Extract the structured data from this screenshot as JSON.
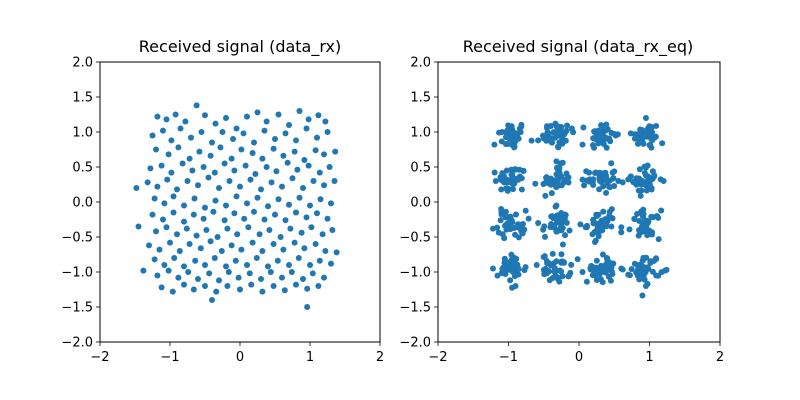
{
  "figure": {
    "background": "#ffffff",
    "point_color": "#1f77b4"
  },
  "chart_data": [
    {
      "type": "scatter",
      "title": "Received signal (data_rx)",
      "xlim": [
        -2,
        2
      ],
      "ylim": [
        -2,
        2
      ],
      "xticks": [
        -2,
        -1,
        0,
        1,
        2
      ],
      "yticks": [
        -2.0,
        -1.5,
        -1.0,
        -0.5,
        0.0,
        0.5,
        1.0,
        1.5,
        2.0
      ],
      "xtick_labels": [
        "−2",
        "−1",
        "0",
        "1",
        "2"
      ],
      "ytick_labels": [
        "−2.0",
        "−1.5",
        "−1.0",
        "−0.5",
        "0.0",
        "0.5",
        "1.0",
        "1.5",
        "2.0"
      ],
      "grid": false,
      "series": [
        {
          "color": "#1f77b4",
          "points": [
            [
              -1.18,
              1.22
            ],
            [
              -1.05,
              1.18
            ],
            [
              -0.92,
              1.25
            ],
            [
              -0.78,
              1.15
            ],
            [
              -0.62,
              1.38
            ],
            [
              -0.5,
              1.24
            ],
            [
              -0.35,
              1.12
            ],
            [
              -0.2,
              1.2
            ],
            [
              -0.05,
              1.05
            ],
            [
              0.1,
              1.22
            ],
            [
              0.25,
              1.28
            ],
            [
              0.38,
              1.15
            ],
            [
              0.55,
              1.25
            ],
            [
              0.7,
              1.1
            ],
            [
              0.85,
              1.3
            ],
            [
              0.98,
              1.18
            ],
            [
              1.12,
              1.24
            ],
            [
              1.22,
              1.15
            ],
            [
              -1.25,
              0.95
            ],
            [
              -1.1,
              1.02
            ],
            [
              -0.98,
              0.88
            ],
            [
              -0.85,
              1.05
            ],
            [
              -0.7,
              0.92
            ],
            [
              -0.55,
              1.0
            ],
            [
              -0.4,
              0.85
            ],
            [
              -0.25,
              1.0
            ],
            [
              -0.1,
              0.9
            ],
            [
              0.05,
              0.98
            ],
            [
              0.2,
              0.85
            ],
            [
              0.35,
              1.02
            ],
            [
              0.5,
              0.9
            ],
            [
              0.65,
              0.98
            ],
            [
              0.8,
              0.88
            ],
            [
              0.95,
              1.05
            ],
            [
              1.1,
              0.92
            ],
            [
              1.25,
              1.0
            ],
            [
              -1.2,
              0.75
            ],
            [
              -1.02,
              0.68
            ],
            [
              -0.88,
              0.78
            ],
            [
              -0.72,
              0.62
            ],
            [
              -0.58,
              0.72
            ],
            [
              -0.42,
              0.66
            ],
            [
              -0.28,
              0.78
            ],
            [
              -0.12,
              0.62
            ],
            [
              0.02,
              0.75
            ],
            [
              0.18,
              0.7
            ],
            [
              0.32,
              0.62
            ],
            [
              0.48,
              0.76
            ],
            [
              0.62,
              0.66
            ],
            [
              0.78,
              0.72
            ],
            [
              0.92,
              0.6
            ],
            [
              1.08,
              0.74
            ],
            [
              1.2,
              0.68
            ],
            [
              -1.28,
              0.48
            ],
            [
              -1.12,
              0.52
            ],
            [
              -0.98,
              0.42
            ],
            [
              -0.82,
              0.55
            ],
            [
              -0.68,
              0.45
            ],
            [
              -0.52,
              0.5
            ],
            [
              -0.36,
              0.42
            ],
            [
              -0.22,
              0.55
            ],
            [
              -0.08,
              0.45
            ],
            [
              0.08,
              0.52
            ],
            [
              0.22,
              0.4
            ],
            [
              0.38,
              0.5
            ],
            [
              0.52,
              0.44
            ],
            [
              0.68,
              0.56
            ],
            [
              0.82,
              0.46
            ],
            [
              0.98,
              0.52
            ],
            [
              1.14,
              0.42
            ],
            [
              1.28,
              0.5
            ],
            [
              -1.32,
              0.28
            ],
            [
              -1.18,
              0.22
            ],
            [
              -1.04,
              0.32
            ],
            [
              -0.9,
              0.18
            ],
            [
              -0.75,
              0.3
            ],
            [
              -0.6,
              0.24
            ],
            [
              -0.45,
              0.35
            ],
            [
              -0.3,
              0.2
            ],
            [
              -0.15,
              0.3
            ],
            [
              0.0,
              0.22
            ],
            [
              0.15,
              0.32
            ],
            [
              0.3,
              0.18
            ],
            [
              0.45,
              0.28
            ],
            [
              0.6,
              0.22
            ],
            [
              0.75,
              0.34
            ],
            [
              0.9,
              0.2
            ],
            [
              1.05,
              0.3
            ],
            [
              1.2,
              0.24
            ],
            [
              1.35,
              0.3
            ],
            [
              -1.48,
              0.2
            ],
            [
              -1.22,
              0.05
            ],
            [
              -1.08,
              -0.02
            ],
            [
              -0.95,
              0.08
            ],
            [
              -0.8,
              -0.05
            ],
            [
              -0.65,
              0.05
            ],
            [
              -0.5,
              -0.08
            ],
            [
              -0.35,
              0.02
            ],
            [
              -0.2,
              -0.05
            ],
            [
              -0.05,
              0.08
            ],
            [
              0.1,
              -0.02
            ],
            [
              0.25,
              0.06
            ],
            [
              0.4,
              -0.06
            ],
            [
              0.55,
              0.04
            ],
            [
              0.7,
              -0.04
            ],
            [
              0.85,
              0.06
            ],
            [
              1.0,
              -0.05
            ],
            [
              1.15,
              0.04
            ],
            [
              1.3,
              -0.02
            ],
            [
              -1.25,
              -0.18
            ],
            [
              -1.1,
              -0.25
            ],
            [
              -0.95,
              -0.15
            ],
            [
              -0.8,
              -0.28
            ],
            [
              -0.66,
              -0.18
            ],
            [
              -0.52,
              -0.24
            ],
            [
              -0.38,
              -0.14
            ],
            [
              -0.22,
              -0.26
            ],
            [
              -0.08,
              -0.16
            ],
            [
              0.06,
              -0.24
            ],
            [
              0.2,
              -0.14
            ],
            [
              0.35,
              -0.25
            ],
            [
              0.5,
              -0.18
            ],
            [
              0.65,
              -0.26
            ],
            [
              0.8,
              -0.15
            ],
            [
              0.95,
              -0.22
            ],
            [
              1.1,
              -0.16
            ],
            [
              1.25,
              -0.24
            ],
            [
              -1.2,
              -0.42
            ],
            [
              -1.05,
              -0.36
            ],
            [
              -0.9,
              -0.46
            ],
            [
              -0.76,
              -0.38
            ],
            [
              -0.62,
              -0.48
            ],
            [
              -0.48,
              -0.4
            ],
            [
              -0.32,
              -0.5
            ],
            [
              -0.18,
              -0.38
            ],
            [
              -0.04,
              -0.46
            ],
            [
              0.12,
              -0.36
            ],
            [
              0.28,
              -0.46
            ],
            [
              0.42,
              -0.4
            ],
            [
              0.58,
              -0.5
            ],
            [
              0.72,
              -0.38
            ],
            [
              0.88,
              -0.44
            ],
            [
              1.02,
              -0.36
            ],
            [
              1.18,
              -0.46
            ],
            [
              1.32,
              -0.4
            ],
            [
              -1.3,
              -0.62
            ],
            [
              -1.15,
              -0.68
            ],
            [
              -1.0,
              -0.58
            ],
            [
              -0.86,
              -0.7
            ],
            [
              -0.72,
              -0.6
            ],
            [
              -0.56,
              -0.66
            ],
            [
              -0.42,
              -0.56
            ],
            [
              -0.26,
              -0.7
            ],
            [
              -0.12,
              -0.62
            ],
            [
              0.02,
              -0.68
            ],
            [
              0.18,
              -0.58
            ],
            [
              0.32,
              -0.7
            ],
            [
              0.48,
              -0.6
            ],
            [
              0.62,
              -0.68
            ],
            [
              0.78,
              -0.58
            ],
            [
              0.92,
              -0.66
            ],
            [
              1.08,
              -0.6
            ],
            [
              1.22,
              -0.7
            ],
            [
              -1.22,
              -0.82
            ],
            [
              -1.08,
              -0.9
            ],
            [
              -0.94,
              -0.8
            ],
            [
              -0.8,
              -0.92
            ],
            [
              -0.64,
              -0.84
            ],
            [
              -0.5,
              -0.9
            ],
            [
              -0.36,
              -0.8
            ],
            [
              -0.2,
              -0.92
            ],
            [
              -0.06,
              -0.84
            ],
            [
              0.1,
              -0.9
            ],
            [
              0.24,
              -0.8
            ],
            [
              0.4,
              -0.92
            ],
            [
              0.54,
              -0.84
            ],
            [
              0.7,
              -0.9
            ],
            [
              0.84,
              -0.8
            ],
            [
              1.0,
              -0.9
            ],
            [
              1.14,
              -0.84
            ],
            [
              1.3,
              -0.88
            ],
            [
              -1.38,
              -0.98
            ],
            [
              -1.18,
              -1.05
            ],
            [
              -1.02,
              -0.98
            ],
            [
              -0.88,
              -1.08
            ],
            [
              -0.74,
              -1.0
            ],
            [
              -0.6,
              -1.1
            ],
            [
              -0.44,
              -1.02
            ],
            [
              -0.3,
              -1.12
            ],
            [
              -0.16,
              -1.0
            ],
            [
              -0.02,
              -1.08
            ],
            [
              0.14,
              -1.02
            ],
            [
              0.3,
              -1.1
            ],
            [
              0.44,
              -1.0
            ],
            [
              0.6,
              -1.08
            ],
            [
              0.74,
              -1.0
            ],
            [
              0.9,
              -1.1
            ],
            [
              1.04,
              -1.02
            ],
            [
              1.2,
              -1.08
            ],
            [
              -1.12,
              -1.22
            ],
            [
              -0.96,
              -1.28
            ],
            [
              -0.8,
              -1.18
            ],
            [
              -0.66,
              -1.25
            ],
            [
              -0.5,
              -1.2
            ],
            [
              -0.34,
              -1.28
            ],
            [
              -0.18,
              -1.2
            ],
            [
              0.0,
              -1.25
            ],
            [
              0.16,
              -1.18
            ],
            [
              0.32,
              -1.28
            ],
            [
              0.48,
              -1.2
            ],
            [
              0.64,
              -1.26
            ],
            [
              0.8,
              -1.18
            ],
            [
              0.96,
              -1.24
            ],
            [
              1.12,
              -1.2
            ],
            [
              -0.4,
              -1.4
            ],
            [
              0.96,
              -1.5
            ],
            [
              1.38,
              -0.72
            ],
            [
              -1.45,
              -0.35
            ],
            [
              1.36,
              0.72
            ]
          ]
        }
      ]
    },
    {
      "type": "scatter",
      "title": "Received signal (data_rx_eq)",
      "xlim": [
        -2,
        2
      ],
      "ylim": [
        -2,
        2
      ],
      "xticks": [
        -2,
        -1,
        0,
        1,
        2
      ],
      "yticks": [
        -2.0,
        -1.5,
        -1.0,
        -0.5,
        0.0,
        0.5,
        1.0,
        1.5,
        2.0
      ],
      "xtick_labels": [
        "−2",
        "−1",
        "0",
        "1",
        "2"
      ],
      "ytick_labels": [
        "−2.0",
        "−1.5",
        "−1.0",
        "−0.5",
        "0.0",
        "0.5",
        "1.0",
        "1.5",
        "2.0"
      ],
      "grid": false,
      "constellation_centers": [
        [
          -0.95,
          0.95
        ],
        [
          -0.32,
          0.95
        ],
        [
          0.32,
          0.95
        ],
        [
          0.95,
          0.95
        ],
        [
          -0.95,
          0.32
        ],
        [
          -0.32,
          0.32
        ],
        [
          0.32,
          0.32
        ],
        [
          0.95,
          0.32
        ],
        [
          -0.95,
          -0.32
        ],
        [
          -0.32,
          -0.32
        ],
        [
          0.32,
          -0.32
        ],
        [
          0.95,
          -0.32
        ],
        [
          -0.95,
          -0.95
        ],
        [
          -0.32,
          -0.95
        ],
        [
          0.32,
          -0.95
        ],
        [
          0.95,
          -0.95
        ]
      ],
      "cluster_spread": 0.1,
      "points_per_cluster": 40,
      "outliers": [
        [
          -1.2,
          0.82
        ],
        [
          -0.58,
          0.88
        ],
        [
          -0.1,
          1.05
        ],
        [
          0.05,
          0.82
        ],
        [
          0.52,
          0.95
        ],
        [
          1.18,
          0.84
        ],
        [
          -1.18,
          0.3
        ],
        [
          -0.62,
          0.26
        ],
        [
          0.05,
          0.32
        ],
        [
          0.62,
          0.28
        ],
        [
          1.2,
          0.3
        ],
        [
          -1.22,
          -0.38
        ],
        [
          -0.58,
          -0.3
        ],
        [
          0.02,
          -0.32
        ],
        [
          0.6,
          -0.36
        ],
        [
          -1.22,
          -0.95
        ],
        [
          -0.6,
          -0.9
        ],
        [
          0.05,
          -1.0
        ],
        [
          0.6,
          -0.95
        ],
        [
          1.22,
          -0.98
        ],
        [
          -0.32,
          0.58
        ],
        [
          -0.32,
          -0.05
        ],
        [
          0.95,
          1.2
        ],
        [
          0.95,
          -1.2
        ],
        [
          -0.9,
          -1.2
        ]
      ],
      "series": [
        {
          "color": "#1f77b4"
        }
      ]
    }
  ]
}
